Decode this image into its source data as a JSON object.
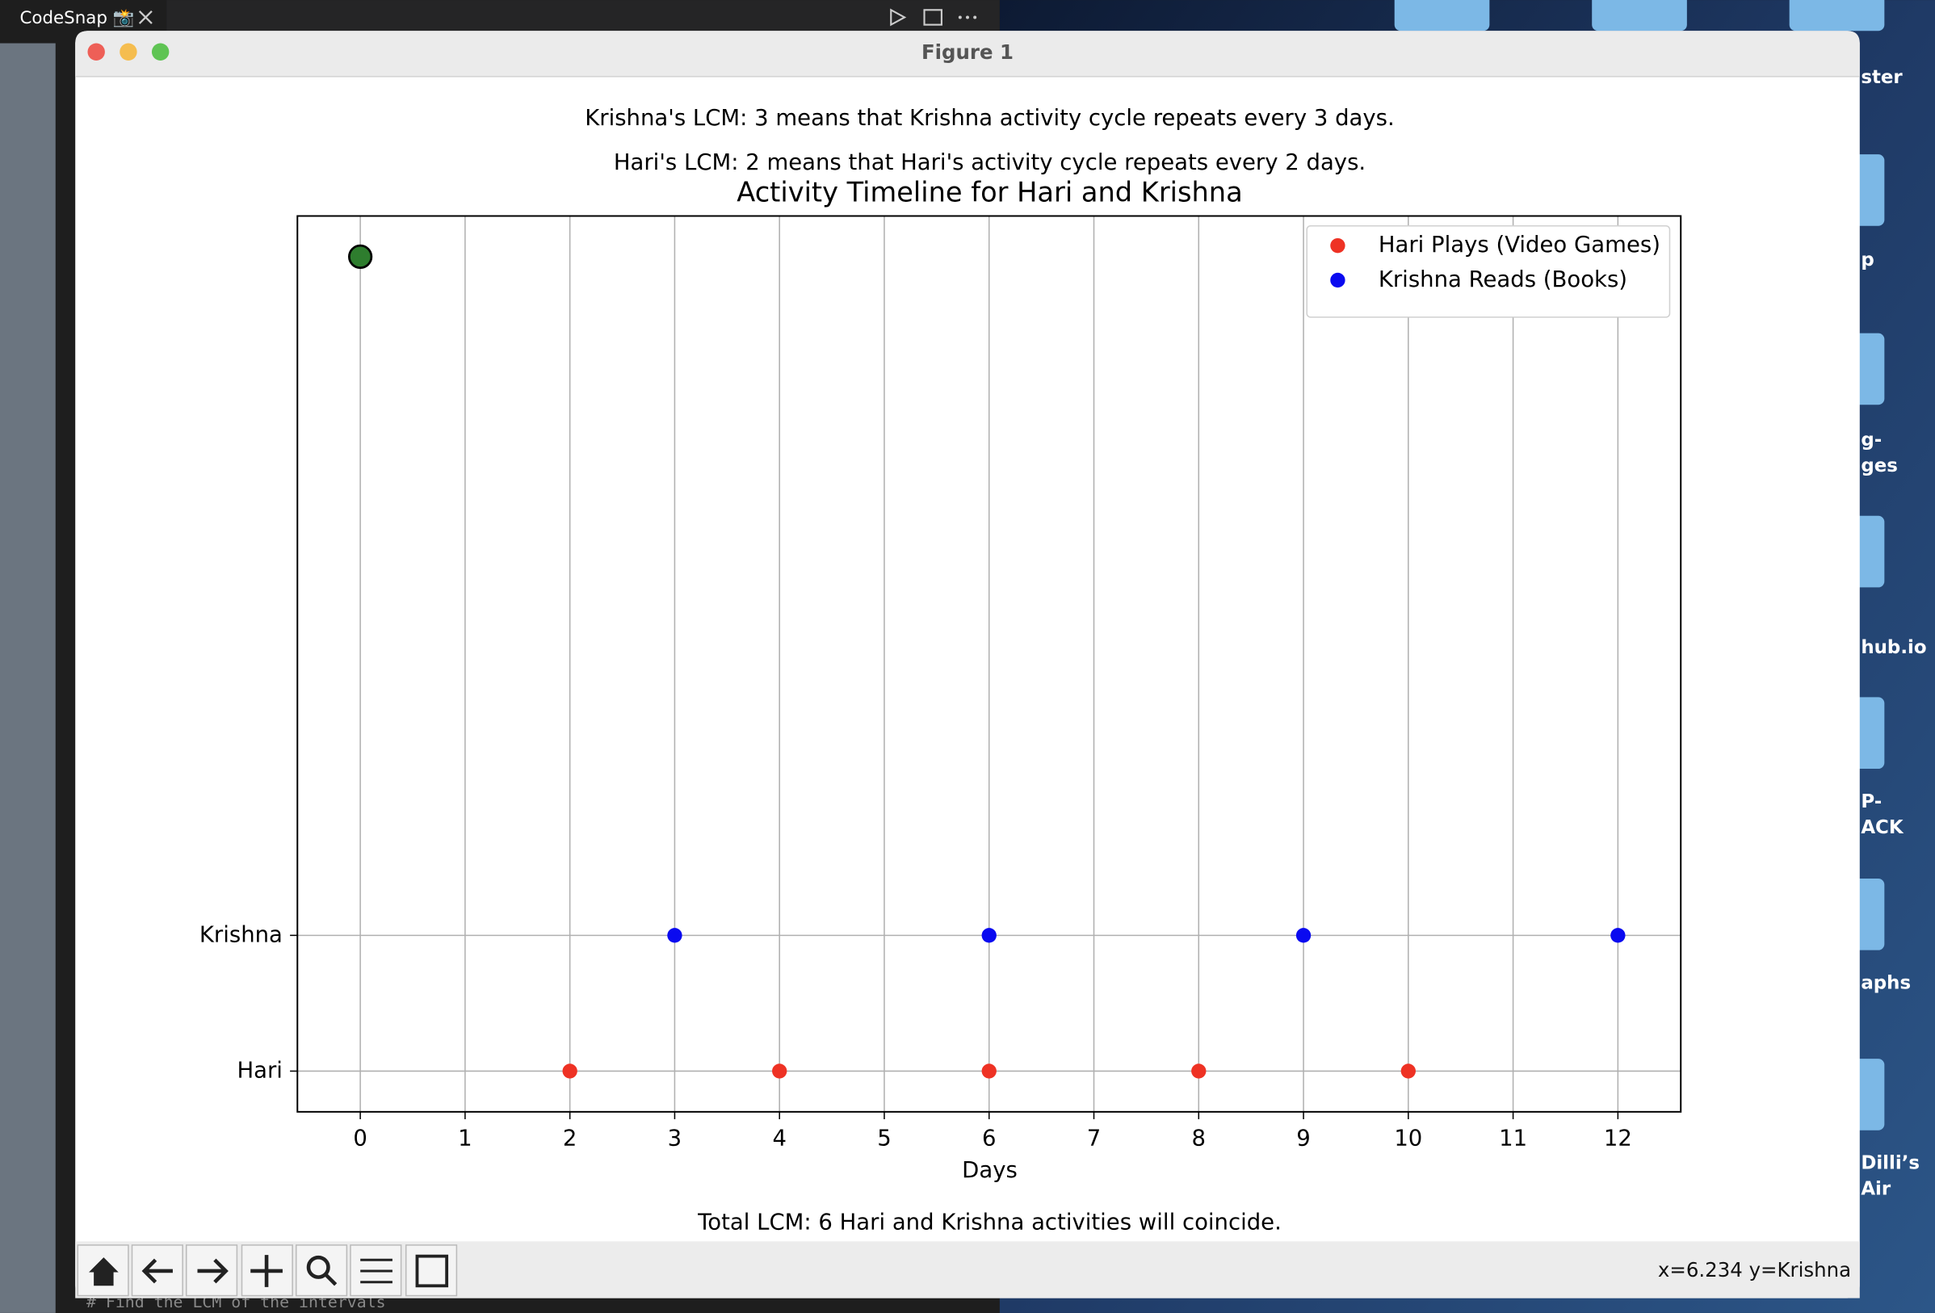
{
  "editor": {
    "tab": "CodeSnap 📸",
    "code_line": "# Find the LCM of the intervals"
  },
  "desktop": {
    "labels": [
      "ster",
      "p",
      "g-",
      "ges",
      "hub.io",
      "P-",
      "ACK",
      "aphs",
      "Dilli’s",
      "Air"
    ]
  },
  "window": {
    "title": "Figure 1",
    "status": "x=6.234 y=Krishna"
  },
  "chart_data": {
    "type": "scatter",
    "title": "Activity Timeline for Hari and Krishna",
    "annotations": [
      "Krishna's LCM: 3 means that Krishna activity cycle repeats every 3 days.",
      "Hari's LCM: 2 means that Hari's activity cycle repeats every 2 days.",
      "Total LCM: 6 Hari and Krishna activities will coincide."
    ],
    "xlabel": "Days",
    "xlim": [
      -0.6,
      12.6
    ],
    "xticks": [
      0,
      1,
      2,
      3,
      4,
      5,
      6,
      7,
      8,
      9,
      10,
      11,
      12
    ],
    "ylim": [
      -0.3,
      6.3
    ],
    "yticks": [
      {
        "value": 0,
        "label": "Hari"
      },
      {
        "value": 1,
        "label": "Krishna"
      }
    ],
    "grid": true,
    "legend": "upper right",
    "series": [
      {
        "name": "Hari Plays (Video Games)",
        "color": "#ee3224",
        "x": [
          2,
          4,
          6,
          8,
          10
        ],
        "y": [
          0,
          0,
          0,
          0,
          0
        ]
      },
      {
        "name": "Krishna Reads (Books)",
        "color": "#0a0af0",
        "x": [
          3,
          6,
          9,
          12
        ],
        "y": [
          1,
          1,
          1,
          1
        ]
      },
      {
        "color": "#2e7d2e",
        "edgecolor": "#000000",
        "x": [
          0
        ],
        "y": [
          6
        ]
      }
    ]
  }
}
